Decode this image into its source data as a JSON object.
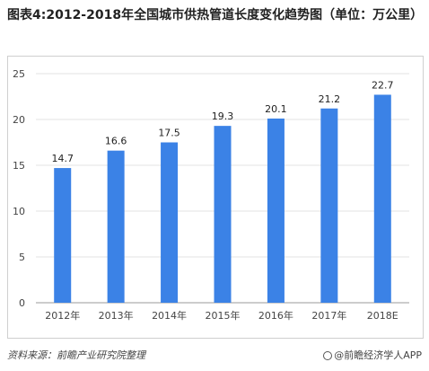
{
  "title": "图表4:2012-2018年全国城市供热管道长度变化趋势图（单位：万公里）",
  "source": "资料来源：前瞻产业研究院整理",
  "brand": "@前瞻经济学人APP",
  "colors": {
    "bar": "#3b82e6",
    "grid": "#e3e3e3",
    "axis": "#999999"
  },
  "chart_data": {
    "type": "bar",
    "categories": [
      "2012年",
      "2013年",
      "2014年",
      "2015年",
      "2016年",
      "2017年",
      "2018E"
    ],
    "values": [
      14.7,
      16.6,
      17.5,
      19.3,
      20.1,
      21.2,
      22.7
    ],
    "data_labels": [
      "14.7",
      "16.6",
      "17.5",
      "19.3",
      "20.1",
      "21.2",
      "22.7"
    ],
    "ylim": [
      0,
      25
    ],
    "yticks": [
      0,
      5,
      10,
      15,
      20,
      25
    ],
    "grid": true,
    "legend": false
  }
}
